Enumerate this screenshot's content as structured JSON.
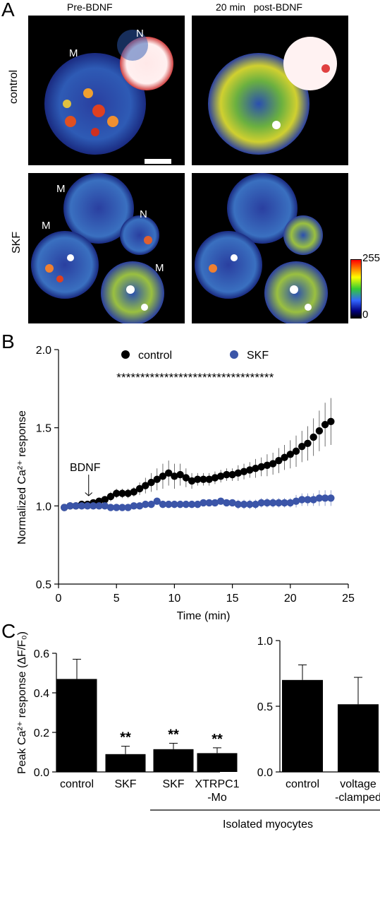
{
  "panel_letters": {
    "a": "A",
    "b": "B",
    "c": "C"
  },
  "panel_a": {
    "col_titles": [
      "Pre-BDNF",
      "20 min   post-BDNF"
    ],
    "row_labels": [
      "control",
      "SKF"
    ],
    "cell_labels": {
      "control_pre": [
        "M",
        "N"
      ],
      "skf_pre": [
        "M",
        "M",
        "N",
        "M"
      ]
    },
    "colorbar": {
      "max": "255",
      "min": "0"
    }
  },
  "chart_data": [
    {
      "type": "scatter",
      "panel": "B",
      "xlabel": "Time (min)",
      "ylabel": "Normalized Ca²⁺ response",
      "xlim": [
        0,
        25
      ],
      "ylim": [
        0.5,
        2.0
      ],
      "xticks": [
        "0",
        "5",
        "10",
        "15",
        "20",
        "25"
      ],
      "yticks": [
        "0.5",
        "1.0",
        "1.5",
        "2.0"
      ],
      "legend_position": "top",
      "annotation": {
        "text": "BDNF",
        "x": 2.6
      },
      "significance": "*********************************",
      "series": [
        {
          "name": "control",
          "color": "#000000",
          "x": [
            0.5,
            1.0,
            1.5,
            2.0,
            2.5,
            3.0,
            3.5,
            4.0,
            4.5,
            5.0,
            5.5,
            6.0,
            6.5,
            7.0,
            7.5,
            8.0,
            8.5,
            9.0,
            9.5,
            10.0,
            10.5,
            11.0,
            11.5,
            12.0,
            12.5,
            13.0,
            13.5,
            14.0,
            14.5,
            15.0,
            15.5,
            16.0,
            16.5,
            17.0,
            17.5,
            18.0,
            18.5,
            19.0,
            19.5,
            20.0,
            20.5,
            21.0,
            21.5,
            22.0,
            22.5,
            23.0,
            23.5
          ],
          "y": [
            0.99,
            1.0,
            1.0,
            1.01,
            1.01,
            1.02,
            1.03,
            1.04,
            1.06,
            1.08,
            1.08,
            1.08,
            1.09,
            1.11,
            1.13,
            1.15,
            1.17,
            1.19,
            1.21,
            1.19,
            1.2,
            1.18,
            1.16,
            1.17,
            1.17,
            1.17,
            1.18,
            1.19,
            1.2,
            1.2,
            1.21,
            1.22,
            1.23,
            1.24,
            1.25,
            1.26,
            1.27,
            1.29,
            1.31,
            1.33,
            1.35,
            1.38,
            1.4,
            1.44,
            1.48,
            1.52,
            1.54
          ],
          "err": [
            0.01,
            0.01,
            0.01,
            0.01,
            0.01,
            0.02,
            0.02,
            0.02,
            0.03,
            0.03,
            0.03,
            0.03,
            0.03,
            0.04,
            0.05,
            0.06,
            0.07,
            0.08,
            0.08,
            0.08,
            0.07,
            0.06,
            0.05,
            0.04,
            0.04,
            0.04,
            0.04,
            0.04,
            0.04,
            0.04,
            0.05,
            0.05,
            0.05,
            0.06,
            0.06,
            0.07,
            0.07,
            0.08,
            0.08,
            0.09,
            0.1,
            0.1,
            0.11,
            0.12,
            0.13,
            0.14,
            0.15
          ]
        },
        {
          "name": "SKF",
          "color": "#3b55a8",
          "x": [
            0.5,
            1.0,
            1.5,
            2.0,
            2.5,
            3.0,
            3.5,
            4.0,
            4.5,
            5.0,
            5.5,
            6.0,
            6.5,
            7.0,
            7.5,
            8.0,
            8.5,
            9.0,
            9.5,
            10.0,
            10.5,
            11.0,
            11.5,
            12.0,
            12.5,
            13.0,
            13.5,
            14.0,
            14.5,
            15.0,
            15.5,
            16.0,
            16.5,
            17.0,
            17.5,
            18.0,
            18.5,
            19.0,
            19.5,
            20.0,
            20.5,
            21.0,
            21.5,
            22.0,
            22.5,
            23.0,
            23.5
          ],
          "y": [
            0.99,
            1.0,
            1.0,
            1.0,
            1.0,
            1.0,
            1.0,
            1.0,
            0.99,
            0.99,
            0.99,
            0.99,
            1.0,
            1.0,
            1.01,
            1.01,
            1.03,
            1.01,
            1.01,
            1.01,
            1.01,
            1.01,
            1.01,
            1.01,
            1.02,
            1.02,
            1.02,
            1.03,
            1.02,
            1.02,
            1.01,
            1.01,
            1.01,
            1.01,
            1.02,
            1.02,
            1.02,
            1.02,
            1.02,
            1.02,
            1.03,
            1.04,
            1.04,
            1.04,
            1.05,
            1.05,
            1.05
          ],
          "err": [
            0.01,
            0.01,
            0.01,
            0.01,
            0.01,
            0.01,
            0.01,
            0.01,
            0.01,
            0.01,
            0.01,
            0.01,
            0.01,
            0.01,
            0.01,
            0.01,
            0.02,
            0.02,
            0.02,
            0.02,
            0.02,
            0.02,
            0.02,
            0.02,
            0.02,
            0.02,
            0.02,
            0.02,
            0.02,
            0.02,
            0.03,
            0.03,
            0.03,
            0.03,
            0.03,
            0.03,
            0.03,
            0.03,
            0.03,
            0.03,
            0.04,
            0.04,
            0.04,
            0.04,
            0.05,
            0.05,
            0.05
          ]
        }
      ]
    },
    {
      "type": "bar",
      "panel": "C-left",
      "ylabel": "Peak Ca²⁺ response (ΔF/F₀)",
      "ylim": [
        0,
        0.6
      ],
      "yticks": [
        "0.0",
        "0.2",
        "0.4",
        "0.6"
      ],
      "categories": [
        "control",
        "SKF",
        "SKF",
        "XTRPC1\n-Mo"
      ],
      "values": [
        0.47,
        0.09,
        0.115,
        0.095
      ],
      "errors": [
        0.1,
        0.04,
        0.03,
        0.027
      ],
      "significance": [
        "",
        "**",
        "**",
        "**"
      ],
      "color": "#000000"
    },
    {
      "type": "bar",
      "panel": "C-right",
      "ylim": [
        0,
        1.0
      ],
      "yticks": [
        "0.0",
        "0.5",
        "1.0"
      ],
      "categories": [
        "control",
        "voltage\n-clamped"
      ],
      "values": [
        0.7,
        0.515
      ],
      "errors": [
        0.115,
        0.205
      ],
      "color": "#000000"
    }
  ],
  "group_label": "Isolated myocytes"
}
